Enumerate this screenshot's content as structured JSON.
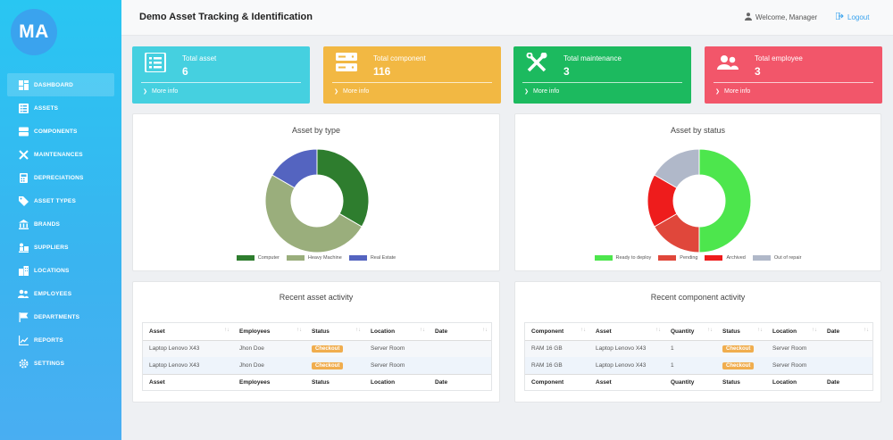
{
  "sidebar": {
    "logo": "MA",
    "items": [
      {
        "label": "DASHBOARD",
        "icon": "dashboard-icon"
      },
      {
        "label": "ASSETS",
        "icon": "list-icon"
      },
      {
        "label": "COMPONENTS",
        "icon": "server-icon"
      },
      {
        "label": "MAINTENANCES",
        "icon": "tools-icon"
      },
      {
        "label": "DEPRECIATIONS",
        "icon": "calculator-icon"
      },
      {
        "label": "ASSET TYPES",
        "icon": "tag-icon"
      },
      {
        "label": "BRANDS",
        "icon": "bank-icon"
      },
      {
        "label": "SUPPLIERS",
        "icon": "supplier-icon"
      },
      {
        "label": "LOCATIONS",
        "icon": "building-icon"
      },
      {
        "label": "EMPLOYEES",
        "icon": "users-icon"
      },
      {
        "label": "DEPARTMENTS",
        "icon": "flag-icon"
      },
      {
        "label": "REPORTS",
        "icon": "chart-line-icon"
      },
      {
        "label": "SETTINGS",
        "icon": "gear-icon"
      }
    ]
  },
  "header": {
    "title": "Demo Asset Tracking & Identification",
    "welcome": "Welcome, Manager",
    "logout": "Logout"
  },
  "cards": [
    {
      "title": "Total asset",
      "value": "6",
      "more": "More info",
      "color": "#45d0e0",
      "icon": "list-icon"
    },
    {
      "title": "Total component",
      "value": "116",
      "more": "More info",
      "color": "#f2b843",
      "icon": "server-icon"
    },
    {
      "title": "Total maintenance",
      "value": "3",
      "more": "More info",
      "color": "#1cba5f",
      "icon": "tools-icon"
    },
    {
      "title": "Total employee",
      "value": "3",
      "more": "More info",
      "color": "#f2566a",
      "icon": "users-icon"
    }
  ],
  "chart_data": [
    {
      "type": "pie",
      "title": "Asset by type",
      "categories": [
        "Computer",
        "Heavy Machine",
        "Real Estate"
      ],
      "values": [
        2,
        3,
        1
      ],
      "colors": [
        "#2e7d2e",
        "#9aae7c",
        "#5464c0"
      ],
      "legend": "bottom"
    },
    {
      "type": "pie",
      "title": "Asset by status",
      "categories": [
        "Ready to deploy",
        "Pending",
        "Archived",
        "Out of repair"
      ],
      "values": [
        3,
        1,
        1,
        1
      ],
      "colors": [
        "#4de64d",
        "#e0473b",
        "#ee1c1c",
        "#b0b8c9"
      ],
      "legend": "bottom"
    }
  ],
  "asset_activity": {
    "title": "Recent asset activity",
    "columns": [
      "Asset",
      "Employees",
      "Status",
      "Location",
      "Date"
    ],
    "rows": [
      [
        "Laptop Lenovo X43",
        "Jhon Doe",
        "Checkout",
        "Server Room",
        ""
      ],
      [
        "Laptop Lenovo X43",
        "Jhon Doe",
        "Checkout",
        "Server Room",
        ""
      ]
    ]
  },
  "component_activity": {
    "title": "Recent component activity",
    "columns": [
      "Component",
      "Asset",
      "Quantity",
      "Status",
      "Location",
      "Date"
    ],
    "rows": [
      [
        "RAM 16 GB",
        "Laptop Lenovo X43",
        "1",
        "Checkout",
        "Server Room",
        ""
      ],
      [
        "RAM 16 GB",
        "Laptop Lenovo X43",
        "1",
        "Checkout",
        "Server Room",
        ""
      ]
    ]
  },
  "sort_glyph": "↑↓",
  "colors": {
    "accent": "#3aa3ee",
    "badge": "#f0ad4e"
  }
}
